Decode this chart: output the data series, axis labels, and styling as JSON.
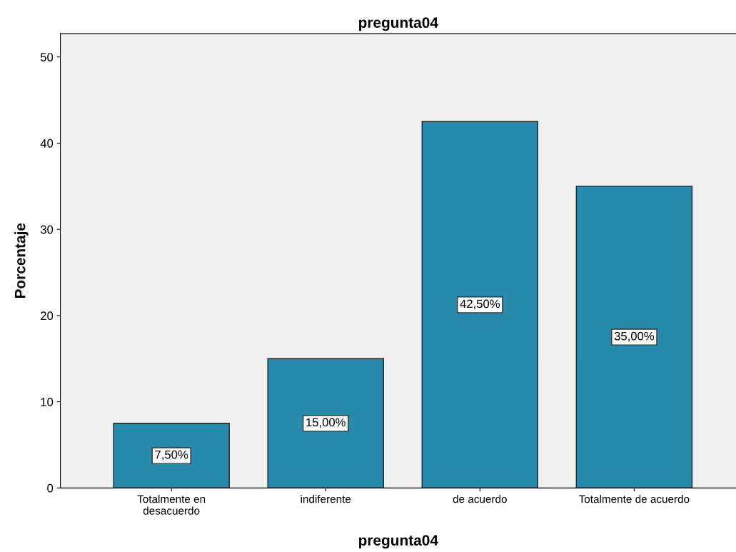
{
  "chart_data": {
    "type": "bar",
    "title": "pregunta04",
    "xlabel": "pregunta04",
    "ylabel": "Porcentaje",
    "categories": [
      "Totalmente en\ndesacuerdo",
      "indiferente",
      "de acuerdo",
      "Totalmente de acuerdo"
    ],
    "values": [
      7.5,
      15,
      42.5,
      35
    ],
    "value_labels": [
      "7,50%",
      "15,00%",
      "42,50%",
      "35,00%"
    ],
    "color": "#268bab",
    "ylim": [
      0,
      52.7
    ],
    "yticks": [
      0,
      10,
      20,
      30,
      40,
      50
    ],
    "grid": false,
    "legend": false
  }
}
